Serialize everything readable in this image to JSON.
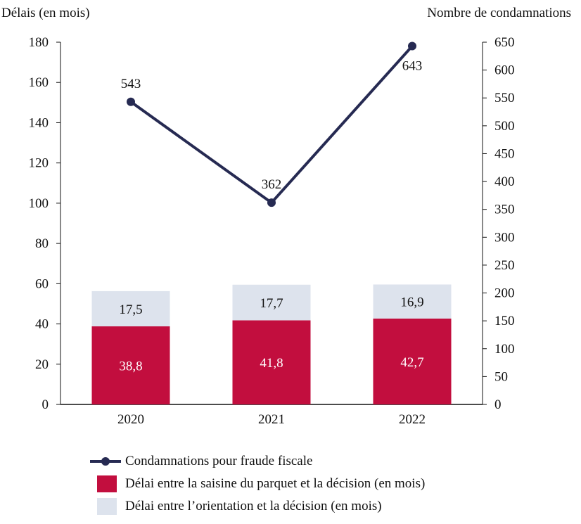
{
  "chart_data": {
    "type": "bar+line",
    "categories": [
      "2020",
      "2021",
      "2022"
    ],
    "ylabel_left": "Délais (en mois)",
    "ylabel_right": "Nombre de condamnations",
    "ylim_left": [
      0,
      180
    ],
    "yticks_left": [
      0,
      20,
      40,
      60,
      80,
      100,
      120,
      140,
      160,
      180
    ],
    "ylim_right": [
      0,
      650
    ],
    "yticks_right": [
      0,
      50,
      100,
      150,
      200,
      250,
      300,
      350,
      400,
      450,
      500,
      550,
      600,
      650
    ],
    "grid": false,
    "legend_position": "bottom",
    "series": [
      {
        "name": "Délai entre la saisine du parquet et la décision (en mois)",
        "type": "stacked-bar",
        "axis": "left",
        "color": "#c20e3e",
        "values": [
          38.8,
          41.8,
          42.7
        ],
        "labels": [
          "38,8",
          "41,8",
          "42,7"
        ]
      },
      {
        "name": "Délai entre l’orientation et la décision (en mois)",
        "type": "stacked-bar",
        "axis": "left",
        "color": "#dde3ed",
        "values": [
          17.5,
          17.7,
          16.9
        ],
        "labels": [
          "17,5",
          "17,7",
          "16,9"
        ]
      },
      {
        "name": "Condamnations pour fraude fiscale",
        "type": "line",
        "axis": "right",
        "color": "#262a52",
        "values": [
          543,
          362,
          643
        ],
        "labels": [
          "543",
          "362",
          "643"
        ]
      }
    ]
  }
}
